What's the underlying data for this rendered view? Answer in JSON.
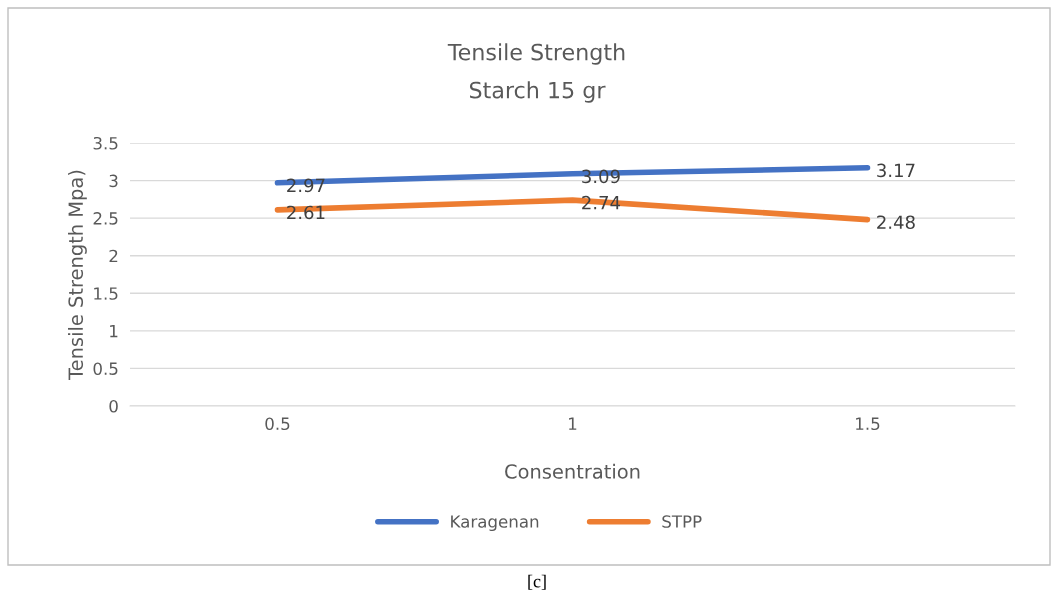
{
  "chart_data": {
    "type": "line",
    "title": "Tensile Strength",
    "subtitle": "Starch 15 gr",
    "xlabel": "Consentration",
    "ylabel": "Tensile Strength Mpa)",
    "categories": [
      "0.5",
      "1",
      "1.5"
    ],
    "series": [
      {
        "name": "Karagenan",
        "color": "#4472c4",
        "values": [
          2.97,
          3.09,
          3.17
        ]
      },
      {
        "name": "STPP",
        "color": "#ed7d31",
        "values": [
          2.61,
          2.74,
          2.48
        ]
      }
    ],
    "ylim": [
      0,
      3.5
    ],
    "yticks": [
      0,
      0.5,
      1,
      1.5,
      2,
      2.5,
      3,
      3.5
    ],
    "grid": "y",
    "legend": "bottom",
    "data_labels": true,
    "marker": "none",
    "line_style": "solid",
    "annotations": [
      "[c]"
    ]
  }
}
